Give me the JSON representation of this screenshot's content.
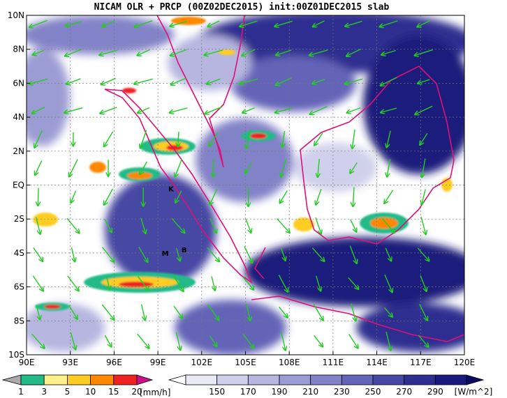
{
  "chart_data": {
    "type": "heatmap",
    "title": "NICAM OLR + PRCP (00Z02DEC2015) init:00Z01DEC2015 slab",
    "xlabel": "",
    "ylabel": "",
    "xlim": [
      90,
      120
    ],
    "ylim": [
      -10,
      10
    ],
    "x_ticks": [
      {
        "value": 90,
        "label": "90E"
      },
      {
        "value": 93,
        "label": "93E"
      },
      {
        "value": 96,
        "label": "96E"
      },
      {
        "value": 99,
        "label": "99E"
      },
      {
        "value": 102,
        "label": "102E"
      },
      {
        "value": 105,
        "label": "105E"
      },
      {
        "value": 108,
        "label": "108E"
      },
      {
        "value": 111,
        "label": "111E"
      },
      {
        "value": 114,
        "label": "114E"
      },
      {
        "value": 117,
        "label": "117E"
      },
      {
        "value": 120,
        "label": "120E"
      }
    ],
    "y_ticks": [
      {
        "value": 10,
        "label": "10N"
      },
      {
        "value": 8,
        "label": "8N"
      },
      {
        "value": 6,
        "label": "6N"
      },
      {
        "value": 4,
        "label": "4N"
      },
      {
        "value": 2,
        "label": "2N"
      },
      {
        "value": 0,
        "label": "EQ"
      },
      {
        "value": -2,
        "label": "2S"
      },
      {
        "value": -4,
        "label": "4S"
      },
      {
        "value": -6,
        "label": "6S"
      },
      {
        "value": -8,
        "label": "8S"
      },
      {
        "value": -10,
        "label": "10S"
      }
    ],
    "grid": true,
    "station_markers": [
      {
        "label": "K",
        "lon": 99.9,
        "lat": -0.2
      },
      {
        "label": "M",
        "lon": 99.5,
        "lat": -4.0
      },
      {
        "label": "B",
        "lon": 100.8,
        "lat": -3.8
      }
    ],
    "precip_colorbar": {
      "labels": [
        "1",
        "3",
        "5",
        "10",
        "15",
        "20"
      ],
      "unit": "[mm/h]",
      "colors": [
        "#aaaaaa",
        "#22bb88",
        "#fff08a",
        "#ffcc22",
        "#ff8800",
        "#ee2222",
        "#cc1188"
      ]
    },
    "olr_colorbar": {
      "labels": [
        "150",
        "170",
        "190",
        "210",
        "230",
        "250",
        "270",
        "290"
      ],
      "unit": "[W/m^2]",
      "colors": [
        "#ffffff",
        "#eaeaf6",
        "#d0d0ec",
        "#b6b6e0",
        "#9c9cd4",
        "#8282c8",
        "#6464b8",
        "#4646a4",
        "#2e2e90",
        "#1a1a7c",
        "#0a0a66"
      ]
    },
    "wind_vector_color": "#22cc22",
    "coastline_color": "#dd1177"
  }
}
